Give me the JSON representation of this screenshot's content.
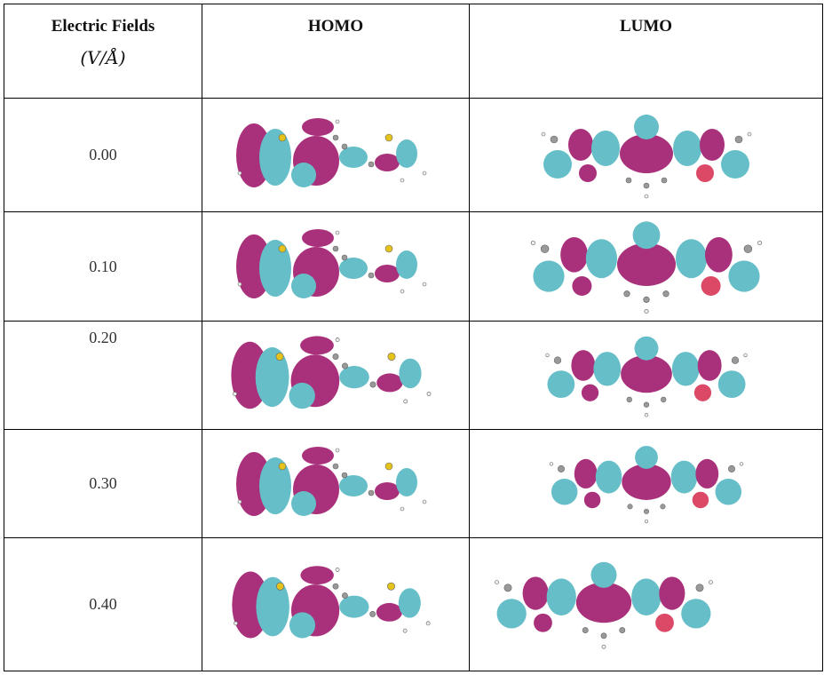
{
  "table": {
    "header": {
      "field": [
        "Electric Fields",
        "(V/Å)"
      ],
      "homo": "HOMO",
      "lumo": "LUMO"
    },
    "rows": [
      {
        "field": "0.00"
      },
      {
        "field": "0.10"
      },
      {
        "field": "0.20"
      },
      {
        "field": "0.30"
      },
      {
        "field": "0.40"
      }
    ]
  }
}
